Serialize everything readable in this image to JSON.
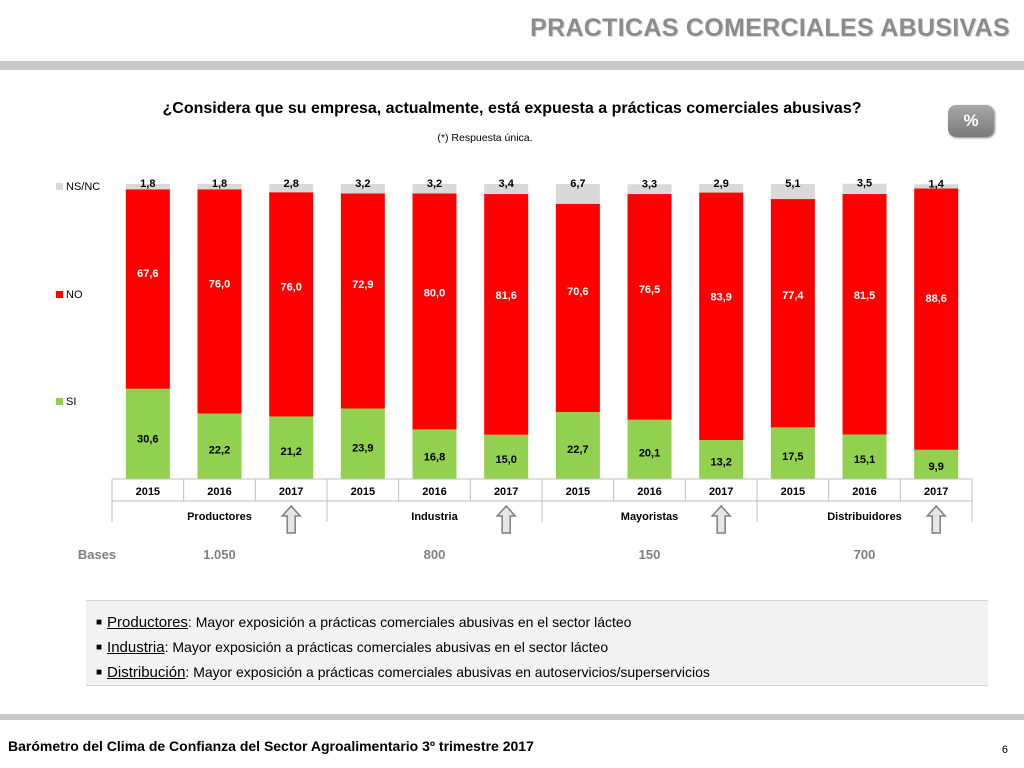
{
  "page": {
    "title": "PRACTICAS COMERCIALES ABUSIVAS",
    "question": "¿Considera que su empresa, actualmente, está expuesta a prácticas comerciales abusivas?",
    "note": "(*) Respuesta única.",
    "unit_badge": "%",
    "footer": "Barómetro del Clima de Confianza del Sector Agroalimentario 3º trimestre 2017",
    "page_number": "6"
  },
  "chart_data": {
    "type": "bar",
    "stacked": true,
    "title": "¿Considera que su empresa, actualmente, está expuesta a prácticas comerciales abusivas?",
    "ylim": [
      0,
      100
    ],
    "grid": false,
    "legend_position": "left",
    "categories": [
      "2015",
      "2016",
      "2017",
      "2015",
      "2016",
      "2017",
      "2015",
      "2016",
      "2017",
      "2015",
      "2016",
      "2017"
    ],
    "groups": [
      {
        "name": "Productores",
        "base": "1.050",
        "trend_marker": true
      },
      {
        "name": "Industria",
        "base": "800",
        "trend_marker": true
      },
      {
        "name": "Mayoristas",
        "base": "150",
        "trend_marker": true
      },
      {
        "name": "Distribuidores",
        "base": "700",
        "trend_marker": true
      }
    ],
    "bases_label": "Bases",
    "series": [
      {
        "name": "SI",
        "color": "#92d050",
        "values": [
          30.6,
          22.2,
          21.2,
          23.9,
          16.8,
          15.0,
          22.7,
          20.1,
          13.2,
          17.5,
          15.1,
          9.9
        ],
        "labels": [
          "30,6",
          "22,2",
          "21,2",
          "23,9",
          "16,8",
          "15,0",
          "22,7",
          "20,1",
          "13,2",
          "17,5",
          "15,1",
          "9,9"
        ]
      },
      {
        "name": "NO",
        "color": "#ff0000",
        "values": [
          67.6,
          76.0,
          76.0,
          72.9,
          80.0,
          81.6,
          70.6,
          76.5,
          83.9,
          77.4,
          81.5,
          88.6
        ],
        "labels": [
          "67,6",
          "76,0",
          "76,0",
          "72,9",
          "80,0",
          "81,6",
          "70,6",
          "76,5",
          "83,9",
          "77,4",
          "81,5",
          "88,6"
        ]
      },
      {
        "name": "NS/NC",
        "color": "#d9d9d9",
        "values": [
          1.8,
          1.8,
          2.8,
          3.2,
          3.2,
          3.4,
          6.7,
          3.3,
          2.9,
          5.1,
          3.5,
          1.4
        ],
        "labels": [
          "1,8",
          "1,8",
          "2,8",
          "3,2",
          "3,2",
          "3,4",
          "6,7",
          "3,3",
          "2,9",
          "5,1",
          "3,5",
          "1,4"
        ]
      }
    ]
  },
  "bullets": [
    {
      "term": "Productores",
      "sep": ":",
      "text": " Mayor exposición a prácticas comerciales abusivas en el sector lácteo"
    },
    {
      "term": "Industria",
      "sep": ":",
      "text": " Mayor exposición a prácticas comerciales abusivas en el sector lácteo"
    },
    {
      "term": "Distribución",
      "sep": ":",
      "text": " Mayor exposición a prácticas comerciales abusivas en autoservicios/superservicios"
    }
  ]
}
